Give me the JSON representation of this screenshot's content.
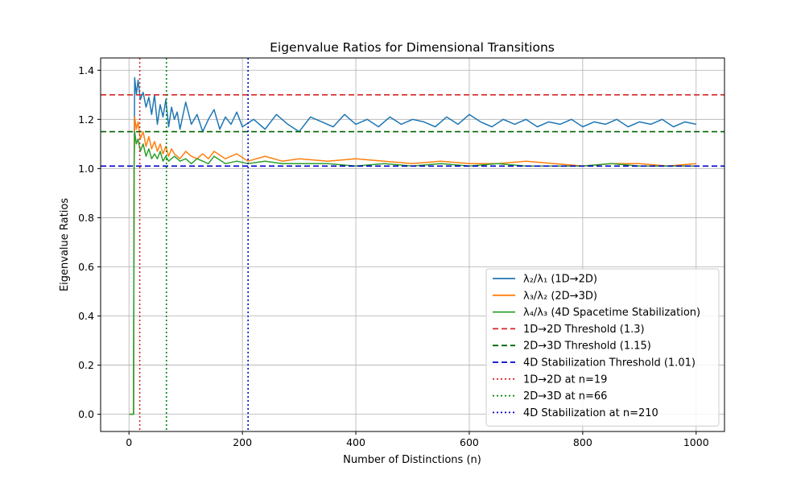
{
  "chart_data": {
    "type": "line",
    "title": "Eigenvalue Ratios for Dimensional Transitions",
    "xlabel": "Number of Distinctions (n)",
    "ylabel": "Eigenvalue Ratios",
    "xlim": [
      -50,
      1050
    ],
    "ylim": [
      -0.07,
      1.45
    ],
    "x_ticks": [
      0,
      200,
      400,
      600,
      800,
      1000
    ],
    "y_ticks": [
      0.0,
      0.2,
      0.4,
      0.6,
      0.8,
      1.0,
      1.2,
      1.4
    ],
    "x_tick_labels": [
      "0",
      "200",
      "400",
      "600",
      "800",
      "1000"
    ],
    "y_tick_labels": [
      "0.0",
      "0.2",
      "0.4",
      "0.6",
      "0.8",
      "1.0",
      "1.2",
      "1.4"
    ],
    "grid": true,
    "legend_position": "lower-right",
    "series": [
      {
        "name": "λ₂/λ₁ (1D→2D)",
        "color": "#1f77b4",
        "x": [
          1,
          8,
          9,
          10,
          13,
          16,
          20,
          25,
          30,
          35,
          40,
          45,
          50,
          55,
          60,
          65,
          70,
          75,
          80,
          85,
          90,
          100,
          110,
          120,
          130,
          140,
          150,
          160,
          170,
          180,
          190,
          200,
          220,
          240,
          260,
          280,
          300,
          320,
          340,
          360,
          380,
          400,
          420,
          440,
          460,
          480,
          500,
          520,
          540,
          560,
          580,
          600,
          620,
          640,
          660,
          680,
          700,
          720,
          740,
          760,
          780,
          800,
          820,
          840,
          860,
          880,
          900,
          920,
          940,
          960,
          980,
          1000
        ],
        "values": [
          0.0,
          0.0,
          1.01,
          1.37,
          1.3,
          1.36,
          1.28,
          1.31,
          1.25,
          1.29,
          1.22,
          1.3,
          1.18,
          1.26,
          1.21,
          1.28,
          1.17,
          1.25,
          1.2,
          1.23,
          1.16,
          1.27,
          1.18,
          1.22,
          1.15,
          1.2,
          1.24,
          1.16,
          1.21,
          1.18,
          1.23,
          1.17,
          1.2,
          1.16,
          1.22,
          1.18,
          1.15,
          1.21,
          1.19,
          1.17,
          1.22,
          1.18,
          1.2,
          1.17,
          1.21,
          1.18,
          1.2,
          1.19,
          1.17,
          1.21,
          1.18,
          1.22,
          1.19,
          1.17,
          1.2,
          1.18,
          1.2,
          1.17,
          1.19,
          1.18,
          1.2,
          1.17,
          1.19,
          1.18,
          1.2,
          1.17,
          1.19,
          1.18,
          1.2,
          1.17,
          1.19,
          1.18
        ]
      },
      {
        "name": "λ₃/λ₂ (2D→3D)",
        "color": "#ff7f0e",
        "x": [
          1,
          8,
          9,
          10,
          13,
          16,
          20,
          25,
          30,
          35,
          40,
          45,
          50,
          55,
          60,
          65,
          70,
          75,
          80,
          90,
          100,
          110,
          120,
          130,
          140,
          150,
          170,
          190,
          210,
          240,
          270,
          300,
          350,
          400,
          450,
          500,
          550,
          600,
          650,
          700,
          750,
          800,
          850,
          900,
          950,
          1000
        ],
        "values": [
          0.0,
          0.0,
          1.0,
          1.21,
          1.16,
          1.19,
          1.12,
          1.15,
          1.09,
          1.13,
          1.08,
          1.11,
          1.07,
          1.1,
          1.06,
          1.09,
          1.05,
          1.08,
          1.06,
          1.04,
          1.07,
          1.05,
          1.04,
          1.06,
          1.04,
          1.07,
          1.04,
          1.06,
          1.03,
          1.05,
          1.03,
          1.04,
          1.03,
          1.04,
          1.03,
          1.02,
          1.03,
          1.02,
          1.02,
          1.03,
          1.02,
          1.01,
          1.02,
          1.02,
          1.01,
          1.02
        ]
      },
      {
        "name": "λ₄/λ₃ (4D Spacetime Stabilization)",
        "color": "#2ca02c",
        "x": [
          1,
          8,
          9,
          10,
          13,
          16,
          20,
          25,
          30,
          35,
          40,
          45,
          50,
          55,
          60,
          65,
          70,
          80,
          90,
          100,
          110,
          120,
          130,
          140,
          150,
          170,
          190,
          210,
          240,
          270,
          300,
          350,
          400,
          450,
          500,
          550,
          600,
          650,
          700,
          750,
          800,
          850,
          900,
          950,
          1000
        ],
        "values": [
          0.0,
          0.0,
          1.0,
          1.15,
          1.1,
          1.12,
          1.07,
          1.1,
          1.05,
          1.08,
          1.04,
          1.06,
          1.04,
          1.07,
          1.03,
          1.05,
          1.03,
          1.05,
          1.03,
          1.04,
          1.02,
          1.04,
          1.03,
          1.02,
          1.05,
          1.02,
          1.03,
          1.02,
          1.03,
          1.02,
          1.02,
          1.02,
          1.01,
          1.02,
          1.01,
          1.02,
          1.01,
          1.02,
          1.01,
          1.01,
          1.01,
          1.02,
          1.01,
          1.01,
          1.01
        ]
      }
    ],
    "thresholds": [
      {
        "name": "1D→2D Threshold (1.3)",
        "value": 1.3,
        "color": "#d62728",
        "style": "dashed"
      },
      {
        "name": "2D→3D Threshold (1.15)",
        "value": 1.15,
        "color": "#006400",
        "style": "dashed"
      },
      {
        "name": "4D Stabilization Threshold (1.01)",
        "value": 1.01,
        "color": "#0000cd",
        "style": "dashed"
      }
    ],
    "transitions": [
      {
        "name": "1D→2D at n=19",
        "value": 19,
        "color": "#d62728",
        "style": "dotted"
      },
      {
        "name": "2D→3D at n=66",
        "value": 66,
        "color": "#008000",
        "style": "dotted"
      },
      {
        "name": "4D Stabilization at n=210",
        "value": 210,
        "color": "#0000cd",
        "style": "dotted"
      }
    ]
  }
}
